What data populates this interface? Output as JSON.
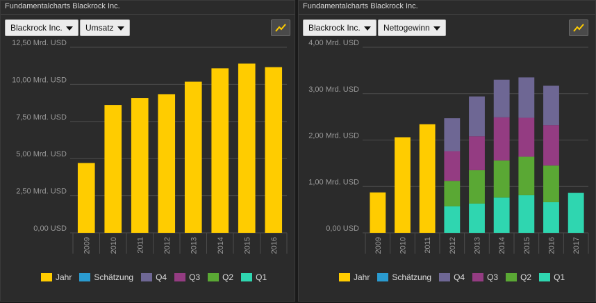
{
  "colors": {
    "Jahr": "#ffcc00",
    "Schätzung": "#2a9bd0",
    "Q4": "#6e6794",
    "Q3": "#943c82",
    "Q2": "#5aa834",
    "Q1": "#2fd6b0"
  },
  "legend": [
    "Jahr",
    "Schätzung",
    "Q4",
    "Q3",
    "Q2",
    "Q1"
  ],
  "left": {
    "title": "Fundamentalcharts Blackrock Inc.",
    "company_select": "Blackrock Inc.",
    "metric_select": "Umsatz",
    "chart_button_icon": "line-chart-icon"
  },
  "right": {
    "title": "Fundamentalcharts Blackrock Inc.",
    "company_select": "Blackrock Inc.",
    "metric_select": "Nettogewinn",
    "chart_button_icon": "line-chart-icon"
  },
  "chart_data": [
    {
      "type": "bar",
      "title": "",
      "xlabel": "",
      "ylabel": "",
      "categories": [
        "2009",
        "2010",
        "2011",
        "2012",
        "2013",
        "2014",
        "2015",
        "2016"
      ],
      "y_ticks": [
        0,
        2.5,
        5,
        7.5,
        10,
        12.5
      ],
      "y_tick_labels": [
        "0,00 USD",
        "2,50 Mrd. USD",
        "5,00 Mrd. USD",
        "7,50 Mrd. USD",
        "10,00 Mrd. USD",
        "12,50 Mrd. USD"
      ],
      "ylim": [
        0,
        12.5
      ],
      "grid": true,
      "legend_position": "bottom",
      "series": [
        {
          "name": "Jahr",
          "values": [
            4.7,
            8.61,
            9.08,
            9.34,
            10.18,
            11.08,
            11.4,
            11.16
          ]
        }
      ]
    },
    {
      "type": "bar",
      "stacked_quarters": true,
      "title": "",
      "xlabel": "",
      "ylabel": "",
      "categories": [
        "2009",
        "2010",
        "2011",
        "2012",
        "2013",
        "2014",
        "2015",
        "2016",
        "2017"
      ],
      "y_ticks": [
        0,
        1,
        2,
        3,
        4
      ],
      "y_tick_labels": [
        "0,00 USD",
        "1,00 Mrd. USD",
        "2,00 Mrd. USD",
        "3,00 Mrd. USD",
        "4,00 Mrd. USD"
      ],
      "ylim": [
        0,
        4
      ],
      "grid": true,
      "legend_position": "bottom",
      "series": [
        {
          "name": "Jahr",
          "values": [
            0.87,
            2.06,
            2.34,
            null,
            null,
            null,
            null,
            null,
            null
          ]
        },
        {
          "name": "Q1",
          "values": [
            null,
            null,
            null,
            0.57,
            0.63,
            0.76,
            0.81,
            0.66,
            0.86
          ]
        },
        {
          "name": "Q2",
          "values": [
            null,
            null,
            null,
            0.55,
            0.72,
            0.8,
            0.83,
            0.79,
            null
          ]
        },
        {
          "name": "Q3",
          "values": [
            null,
            null,
            null,
            0.64,
            0.73,
            0.93,
            0.84,
            0.87,
            null
          ]
        },
        {
          "name": "Q4",
          "values": [
            null,
            null,
            null,
            0.71,
            0.86,
            0.81,
            0.87,
            0.85,
            null
          ]
        }
      ]
    }
  ]
}
